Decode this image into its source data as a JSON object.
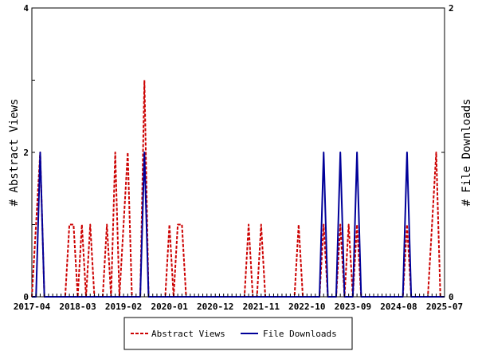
{
  "chart_data": {
    "type": "line",
    "title": "",
    "xlabel": "",
    "ylabel_left": "# Abstract Views",
    "ylabel_right": "# File Downloads",
    "ylim_left": [
      0,
      4
    ],
    "ylim_right": [
      0,
      2
    ],
    "yticks_left": [
      "0",
      "2",
      "4"
    ],
    "yticks_right": [
      "0",
      "1",
      "2"
    ],
    "x_tick_labels": [
      "2017-04",
      "2018-03",
      "2019-02",
      "2020-01",
      "2020-12",
      "2021-11",
      "2022-10",
      "2023-09",
      "2024-08",
      "2025-07"
    ],
    "x_start": "2017-04",
    "x_end": "2025-07",
    "grid": false,
    "legend_position": "bottom",
    "series": [
      {
        "name": "Abstract Views",
        "axis": "left",
        "color": "#cc0000",
        "dash": "dashed",
        "points": [
          [
            "2017-04",
            0
          ],
          [
            "2017-05",
            1
          ],
          [
            "2017-06",
            2
          ],
          [
            "2017-07",
            0
          ],
          [
            "2017-08",
            0
          ],
          [
            "2017-09",
            0
          ],
          [
            "2017-10",
            0
          ],
          [
            "2017-11",
            0
          ],
          [
            "2017-12",
            0
          ],
          [
            "2018-01",
            1
          ],
          [
            "2018-02",
            1
          ],
          [
            "2018-03",
            0
          ],
          [
            "2018-04",
            1
          ],
          [
            "2018-05",
            0
          ],
          [
            "2018-06",
            1
          ],
          [
            "2018-07",
            0
          ],
          [
            "2018-08",
            0
          ],
          [
            "2018-09",
            0
          ],
          [
            "2018-10",
            1
          ],
          [
            "2018-11",
            0
          ],
          [
            "2018-12",
            2
          ],
          [
            "2019-01",
            0
          ],
          [
            "2019-02",
            1
          ],
          [
            "2019-03",
            2
          ],
          [
            "2019-04",
            0
          ],
          [
            "2019-05",
            0
          ],
          [
            "2019-06",
            0
          ],
          [
            "2019-07",
            3
          ],
          [
            "2019-08",
            0
          ],
          [
            "2019-09",
            0
          ],
          [
            "2019-10",
            0
          ],
          [
            "2019-11",
            0
          ],
          [
            "2019-12",
            0
          ],
          [
            "2020-01",
            1
          ],
          [
            "2020-02",
            0
          ],
          [
            "2020-03",
            1
          ],
          [
            "2020-04",
            1
          ],
          [
            "2020-05",
            0
          ],
          [
            "2020-06",
            0
          ],
          [
            "2020-07",
            0
          ],
          [
            "2020-08",
            0
          ],
          [
            "2020-09",
            0
          ],
          [
            "2020-10",
            0
          ],
          [
            "2020-11",
            0
          ],
          [
            "2020-12",
            0
          ],
          [
            "2021-01",
            0
          ],
          [
            "2021-02",
            0
          ],
          [
            "2021-03",
            0
          ],
          [
            "2021-04",
            0
          ],
          [
            "2021-05",
            0
          ],
          [
            "2021-06",
            0
          ],
          [
            "2021-07",
            0
          ],
          [
            "2021-08",
            1
          ],
          [
            "2021-09",
            0
          ],
          [
            "2021-10",
            0
          ],
          [
            "2021-11",
            1
          ],
          [
            "2021-12",
            0
          ],
          [
            "2022-01",
            0
          ],
          [
            "2022-02",
            0
          ],
          [
            "2022-03",
            0
          ],
          [
            "2022-04",
            0
          ],
          [
            "2022-05",
            0
          ],
          [
            "2022-06",
            0
          ],
          [
            "2022-07",
            0
          ],
          [
            "2022-08",
            1
          ],
          [
            "2022-09",
            0
          ],
          [
            "2022-10",
            0
          ],
          [
            "2022-11",
            0
          ],
          [
            "2022-12",
            0
          ],
          [
            "2023-01",
            0
          ],
          [
            "2023-02",
            1
          ],
          [
            "2023-03",
            0
          ],
          [
            "2023-04",
            0
          ],
          [
            "2023-05",
            0
          ],
          [
            "2023-06",
            1
          ],
          [
            "2023-07",
            0
          ],
          [
            "2023-08",
            1
          ],
          [
            "2023-09",
            0
          ],
          [
            "2023-10",
            1
          ],
          [
            "2023-11",
            0
          ],
          [
            "2023-12",
            0
          ],
          [
            "2024-01",
            0
          ],
          [
            "2024-02",
            0
          ],
          [
            "2024-03",
            0
          ],
          [
            "2024-04",
            0
          ],
          [
            "2024-05",
            0
          ],
          [
            "2024-06",
            0
          ],
          [
            "2024-07",
            0
          ],
          [
            "2024-08",
            0
          ],
          [
            "2024-09",
            0
          ],
          [
            "2024-10",
            1
          ],
          [
            "2024-11",
            0
          ],
          [
            "2024-12",
            0
          ],
          [
            "2025-01",
            0
          ],
          [
            "2025-02",
            0
          ],
          [
            "2025-03",
            0
          ],
          [
            "2025-04",
            1
          ],
          [
            "2025-05",
            2
          ],
          [
            "2025-06",
            0
          ],
          [
            "2025-07",
            0
          ]
        ]
      },
      {
        "name": "File Downloads",
        "axis": "right",
        "color": "#000099",
        "dash": "solid",
        "points": [
          [
            "2017-04",
            0
          ],
          [
            "2017-05",
            0
          ],
          [
            "2017-06",
            1
          ],
          [
            "2017-07",
            0
          ],
          [
            "2017-08",
            0
          ],
          [
            "2017-09",
            0
          ],
          [
            "2017-10",
            0
          ],
          [
            "2017-11",
            0
          ],
          [
            "2017-12",
            0
          ],
          [
            "2018-01",
            0
          ],
          [
            "2018-02",
            0
          ],
          [
            "2018-03",
            0
          ],
          [
            "2018-04",
            0
          ],
          [
            "2018-05",
            0
          ],
          [
            "2018-06",
            0
          ],
          [
            "2018-07",
            0
          ],
          [
            "2018-08",
            0
          ],
          [
            "2018-09",
            0
          ],
          [
            "2018-10",
            0
          ],
          [
            "2018-11",
            0
          ],
          [
            "2018-12",
            0
          ],
          [
            "2019-01",
            0
          ],
          [
            "2019-02",
            0
          ],
          [
            "2019-03",
            0
          ],
          [
            "2019-04",
            0
          ],
          [
            "2019-05",
            0
          ],
          [
            "2019-06",
            0
          ],
          [
            "2019-07",
            1
          ],
          [
            "2019-08",
            0
          ],
          [
            "2019-09",
            0
          ],
          [
            "2019-10",
            0
          ],
          [
            "2019-11",
            0
          ],
          [
            "2019-12",
            0
          ],
          [
            "2020-01",
            0
          ],
          [
            "2020-02",
            0
          ],
          [
            "2020-03",
            0
          ],
          [
            "2020-04",
            0
          ],
          [
            "2020-05",
            0
          ],
          [
            "2020-06",
            0
          ],
          [
            "2020-07",
            0
          ],
          [
            "2020-08",
            0
          ],
          [
            "2020-09",
            0
          ],
          [
            "2020-10",
            0
          ],
          [
            "2020-11",
            0
          ],
          [
            "2020-12",
            0
          ],
          [
            "2021-01",
            0
          ],
          [
            "2021-02",
            0
          ],
          [
            "2021-03",
            0
          ],
          [
            "2021-04",
            0
          ],
          [
            "2021-05",
            0
          ],
          [
            "2021-06",
            0
          ],
          [
            "2021-07",
            0
          ],
          [
            "2021-08",
            0
          ],
          [
            "2021-09",
            0
          ],
          [
            "2021-10",
            0
          ],
          [
            "2021-11",
            0
          ],
          [
            "2021-12",
            0
          ],
          [
            "2022-01",
            0
          ],
          [
            "2022-02",
            0
          ],
          [
            "2022-03",
            0
          ],
          [
            "2022-04",
            0
          ],
          [
            "2022-05",
            0
          ],
          [
            "2022-06",
            0
          ],
          [
            "2022-07",
            0
          ],
          [
            "2022-08",
            0
          ],
          [
            "2022-09",
            0
          ],
          [
            "2022-10",
            0
          ],
          [
            "2022-11",
            0
          ],
          [
            "2022-12",
            0
          ],
          [
            "2023-01",
            0
          ],
          [
            "2023-02",
            1
          ],
          [
            "2023-03",
            0
          ],
          [
            "2023-04",
            0
          ],
          [
            "2023-05",
            0
          ],
          [
            "2023-06",
            1
          ],
          [
            "2023-07",
            0
          ],
          [
            "2023-08",
            0
          ],
          [
            "2023-09",
            0
          ],
          [
            "2023-10",
            1
          ],
          [
            "2023-11",
            0
          ],
          [
            "2023-12",
            0
          ],
          [
            "2024-01",
            0
          ],
          [
            "2024-02",
            0
          ],
          [
            "2024-03",
            0
          ],
          [
            "2024-04",
            0
          ],
          [
            "2024-05",
            0
          ],
          [
            "2024-06",
            0
          ],
          [
            "2024-07",
            0
          ],
          [
            "2024-08",
            0
          ],
          [
            "2024-09",
            0
          ],
          [
            "2024-10",
            1
          ],
          [
            "2024-11",
            0
          ],
          [
            "2024-12",
            0
          ],
          [
            "2025-01",
            0
          ],
          [
            "2025-02",
            0
          ],
          [
            "2025-03",
            0
          ],
          [
            "2025-04",
            0
          ],
          [
            "2025-05",
            0
          ],
          [
            "2025-06",
            0
          ],
          [
            "2025-07",
            0
          ]
        ]
      }
    ]
  }
}
